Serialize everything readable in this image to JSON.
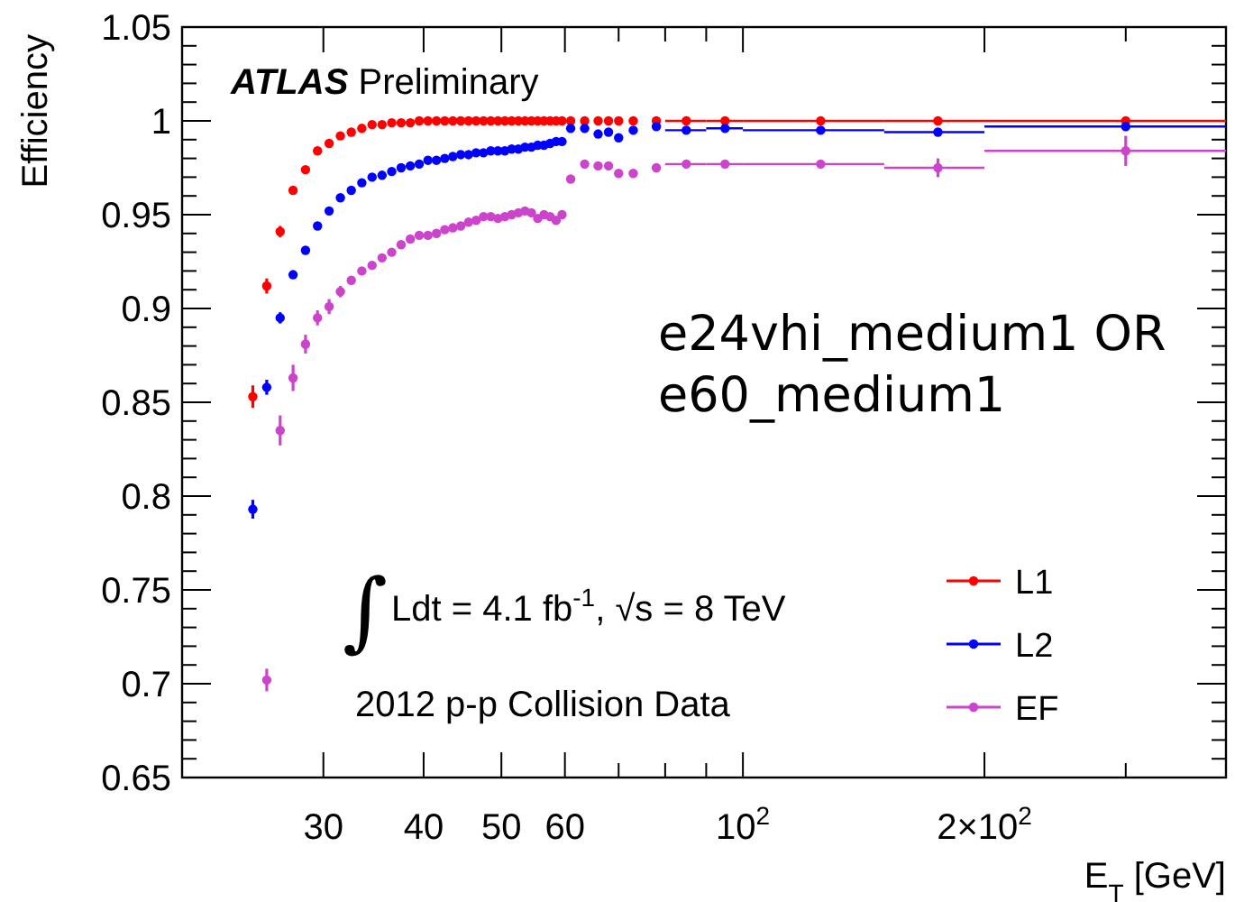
{
  "chart_data": {
    "type": "scatter",
    "xlabel": "E$_{T}$ [GeV]",
    "ylabel": "Efficiency",
    "log": "x",
    "grid": false,
    "legend": "bottom right",
    "marker": "circle",
    "xlim": [
      20,
      400
    ],
    "ylim": [
      0.65,
      1.05
    ],
    "xticks": [
      30,
      40,
      50,
      60,
      {
        "value": 70,
        "label": null
      },
      {
        "value": 80,
        "label": null
      },
      {
        "value": 90,
        "label": null
      },
      {
        "value": 100,
        "label": "10$^{2}$"
      },
      {
        "value": 200,
        "label": "2×10$^{2}$"
      },
      {
        "value": 300,
        "label": null
      }
    ],
    "yticks": [
      0.65,
      {
        "value": 0.66,
        "label": null
      },
      {
        "value": 0.67,
        "label": null
      },
      {
        "value": 0.68,
        "label": null
      },
      {
        "value": 0.69,
        "label": null
      },
      0.7,
      {
        "value": 0.71,
        "label": null
      },
      {
        "value": 0.72,
        "label": null
      },
      {
        "value": 0.73,
        "label": null
      },
      {
        "value": 0.74,
        "label": null
      },
      0.75,
      {
        "value": 0.76,
        "label": null
      },
      {
        "value": 0.77,
        "label": null
      },
      {
        "value": 0.78,
        "label": null
      },
      {
        "value": 0.79,
        "label": null
      },
      0.8,
      {
        "value": 0.81,
        "label": null
      },
      {
        "value": 0.82,
        "label": null
      },
      {
        "value": 0.83,
        "label": null
      },
      {
        "value": 0.84,
        "label": null
      },
      0.85,
      {
        "value": 0.86,
        "label": null
      },
      {
        "value": 0.87,
        "label": null
      },
      {
        "value": 0.88,
        "label": null
      },
      {
        "value": 0.89,
        "label": null
      },
      0.9,
      {
        "value": 0.91,
        "label": null
      },
      {
        "value": 0.92,
        "label": null
      },
      {
        "value": 0.93,
        "label": null
      },
      {
        "value": 0.94,
        "label": null
      },
      0.95,
      {
        "value": 0.96,
        "label": null
      },
      {
        "value": 0.97,
        "label": null
      },
      {
        "value": 0.98,
        "label": null
      },
      {
        "value": 0.99,
        "label": null
      },
      1,
      {
        "value": 1.01,
        "label": null
      },
      {
        "value": 1.02,
        "label": null
      },
      {
        "value": 1.03,
        "label": null
      },
      {
        "value": 1.04,
        "label": null
      },
      1.05
    ],
    "x": [
      24.5,
      25.5,
      26.5,
      27.5,
      28.5,
      29.5,
      30.5,
      31.5,
      32.5,
      33.5,
      34.5,
      35.5,
      36.5,
      37.5,
      38.5,
      39.5,
      40.5,
      41.5,
      42.5,
      43.5,
      44.5,
      45.5,
      46.5,
      47.5,
      48.5,
      49.5,
      50.5,
      51.5,
      52.5,
      53.5,
      54.5,
      55.5,
      56.5,
      57.5,
      58.5,
      59.5,
      61,
      63.5,
      66,
      68,
      70,
      73,
      78,
      85,
      95,
      125,
      175,
      300
    ],
    "annotations": [
      "ATLAS Preliminary",
      "e24vhi_medium1 OR\ne60_medium1",
      "∫Ldt = 4.1 fb$^{-1}$, √s = 8 TeV",
      "2012 p-p Collision Data"
    ],
    "series": [
      {
        "name": "L1",
        "color": "#ff0000",
        "values": [
          0.853,
          0.912,
          0.941,
          0.963,
          0.974,
          0.984,
          0.988,
          0.992,
          0.994,
          0.996,
          0.998,
          0.998,
          0.999,
          0.999,
          0.999,
          1,
          1,
          1,
          1,
          1,
          1,
          1,
          1,
          1,
          1,
          1,
          1,
          1,
          1,
          1,
          1,
          1,
          1,
          1,
          1,
          1,
          1,
          1,
          1,
          1,
          1,
          1,
          1,
          1,
          1,
          1,
          1,
          1
        ],
        "errors": [
          0.006,
          0.004,
          0.003,
          0.002,
          null,
          null,
          null,
          null,
          null,
          null,
          null,
          null,
          null,
          null,
          null,
          null,
          null,
          null,
          null,
          null,
          null,
          null,
          null,
          null,
          null,
          null,
          null,
          null,
          null,
          null,
          null,
          null,
          null,
          null,
          null,
          null,
          null,
          null,
          null,
          null,
          null,
          null,
          null,
          null,
          null,
          null,
          null,
          null
        ],
        "xerrors": [
          null,
          null,
          null,
          null,
          null,
          null,
          null,
          null,
          null,
          null,
          null,
          null,
          null,
          null,
          null,
          null,
          null,
          null,
          null,
          null,
          null,
          null,
          null,
          null,
          null,
          null,
          null,
          null,
          null,
          null,
          null,
          null,
          null,
          null,
          null,
          null,
          null,
          null,
          null,
          null,
          null,
          null,
          null,
          [
            80,
            90
          ],
          [
            90,
            100
          ],
          [
            100,
            150
          ],
          [
            150,
            200
          ],
          [
            200,
            400
          ]
        ]
      },
      {
        "name": "L2",
        "color": "#0000ff",
        "values": [
          0.793,
          0.858,
          0.895,
          0.918,
          0.931,
          0.944,
          0.952,
          0.959,
          0.963,
          0.967,
          0.97,
          0.971,
          0.973,
          0.975,
          0.976,
          0.977,
          0.979,
          0.979,
          0.98,
          0.981,
          0.982,
          0.982,
          0.983,
          0.983,
          0.984,
          0.984,
          0.984,
          0.985,
          0.985,
          0.986,
          0.986,
          0.987,
          0.987,
          0.988,
          0.989,
          0.989,
          0.996,
          0.996,
          0.993,
          0.994,
          0.991,
          0.995,
          0.997,
          0.995,
          0.996,
          0.995,
          0.994,
          0.997
        ],
        "errors": [
          0.005,
          0.004,
          0.003,
          null,
          null,
          null,
          null,
          null,
          null,
          null,
          null,
          null,
          null,
          null,
          null,
          null,
          null,
          null,
          null,
          null,
          null,
          null,
          null,
          null,
          null,
          null,
          null,
          null,
          null,
          null,
          null,
          null,
          null,
          null,
          null,
          null,
          null,
          null,
          null,
          null,
          null,
          null,
          null,
          null,
          null,
          null,
          0.002,
          0.002
        ],
        "xerrors": [
          null,
          null,
          null,
          null,
          null,
          null,
          null,
          null,
          null,
          null,
          null,
          null,
          null,
          null,
          null,
          null,
          null,
          null,
          null,
          null,
          null,
          null,
          null,
          null,
          null,
          null,
          null,
          null,
          null,
          null,
          null,
          null,
          null,
          null,
          null,
          null,
          null,
          null,
          null,
          null,
          null,
          null,
          null,
          [
            80,
            90
          ],
          [
            90,
            100
          ],
          [
            100,
            150
          ],
          [
            150,
            200
          ],
          [
            200,
            400
          ]
        ]
      },
      {
        "name": "EF",
        "color": "#cc44cc",
        "values": [
          null,
          0.702,
          0.835,
          0.863,
          0.881,
          0.895,
          0.901,
          0.909,
          0.915,
          0.92,
          0.923,
          0.927,
          0.93,
          0.934,
          0.937,
          0.939,
          0.939,
          0.94,
          0.942,
          0.943,
          0.944,
          0.946,
          0.947,
          0.949,
          0.949,
          0.948,
          0.949,
          0.95,
          0.951,
          0.952,
          0.951,
          0.948,
          0.95,
          0.949,
          0.947,
          0.95,
          0.969,
          0.977,
          0.976,
          0.976,
          0.972,
          0.972,
          0.975,
          0.977,
          0.977,
          0.977,
          0.975,
          0.984
        ],
        "errors": [
          null,
          0.006,
          0.008,
          0.007,
          0.005,
          0.004,
          0.004,
          0.003,
          null,
          null,
          null,
          null,
          null,
          null,
          null,
          null,
          null,
          null,
          null,
          null,
          null,
          null,
          null,
          null,
          null,
          null,
          null,
          null,
          null,
          null,
          null,
          null,
          null,
          null,
          null,
          null,
          null,
          null,
          null,
          null,
          null,
          null,
          null,
          null,
          null,
          null,
          0.005,
          0.008
        ],
        "xerrors": [
          null,
          null,
          null,
          null,
          null,
          null,
          null,
          null,
          null,
          null,
          null,
          null,
          null,
          null,
          null,
          null,
          null,
          null,
          null,
          null,
          null,
          null,
          null,
          null,
          null,
          null,
          null,
          null,
          null,
          null,
          null,
          null,
          null,
          null,
          null,
          null,
          null,
          null,
          null,
          null,
          null,
          null,
          null,
          [
            80,
            90
          ],
          [
            90,
            100
          ],
          [
            100,
            150
          ],
          [
            150,
            200
          ],
          [
            200,
            400
          ]
        ]
      }
    ]
  }
}
